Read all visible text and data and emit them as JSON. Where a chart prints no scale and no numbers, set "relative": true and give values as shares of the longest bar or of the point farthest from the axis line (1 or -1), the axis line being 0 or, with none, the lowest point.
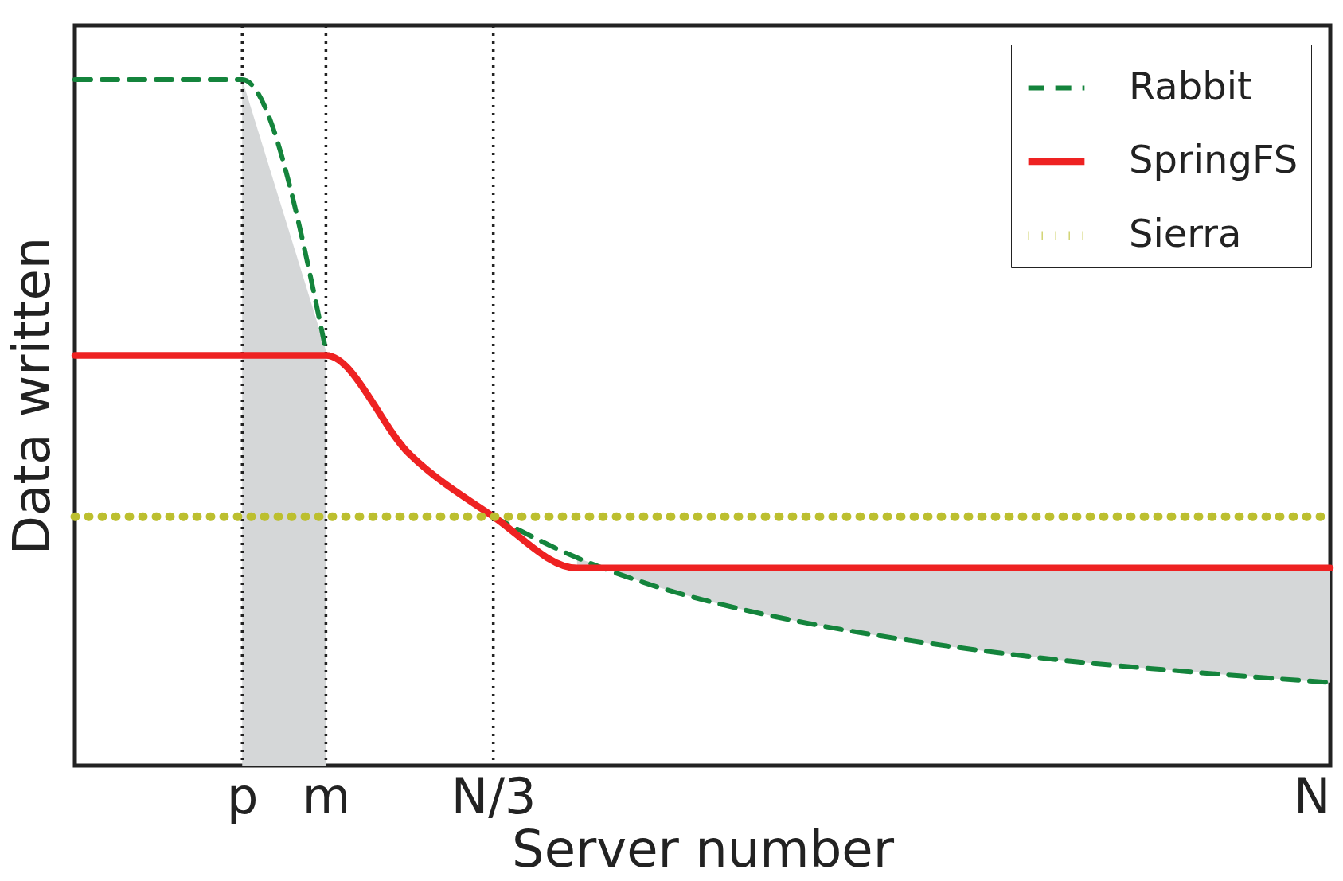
{
  "chart_data": {
    "type": "line",
    "relative": true,
    "xlabel": "Server number",
    "ylabel": "Data written",
    "categories": [
      null,
      null,
      "p",
      "m",
      null,
      "N/3",
      null,
      null,
      null,
      null,
      null,
      null,
      null,
      null,
      null,
      "N"
    ],
    "series": [
      {
        "name": "Rabbit",
        "color": "#14843c",
        "line_style": "dashed",
        "values": [
          1,
          1,
          1,
          0.605,
          null,
          0.363,
          0.303,
          0.259,
          0.227,
          0.202,
          0.182,
          0.165,
          0.151,
          0.14,
          0.13,
          0.121
        ],
        "lower": [
          null,
          null,
          0,
          0,
          null,
          null,
          0.303,
          0.259,
          0.227,
          0.202,
          0.182,
          0.165,
          0.151,
          0.14,
          0.13,
          0.121
        ],
        "upper": [
          null,
          null,
          1,
          0.605,
          null,
          null,
          0.288,
          0.288,
          0.288,
          0.288,
          0.288,
          0.288,
          0.288,
          0.288,
          0.288,
          0.288
        ]
      },
      {
        "name": "SpringFS",
        "color": "#ee2222",
        "line_style": "solid",
        "values": [
          0.598,
          0.598,
          0.598,
          0.598,
          0.454,
          0.363,
          0.288,
          0.288,
          0.288,
          0.288,
          0.288,
          0.288,
          0.288,
          0.288,
          0.288,
          0.288
        ]
      },
      {
        "name": "Sierra",
        "color": "#bcbf2f",
        "line_style": "dotted",
        "values": [
          0.363,
          0.363,
          0.363,
          0.363,
          0.363,
          0.363,
          0.363,
          0.363,
          0.363,
          0.363,
          0.363,
          0.363,
          0.363,
          0.363,
          0.363,
          0.363
        ]
      }
    ],
    "ref_lines": [
      {
        "axis": "x",
        "value": "p",
        "color": "#222222",
        "line_style": "dotted"
      },
      {
        "axis": "x",
        "value": "m",
        "color": "#222222",
        "line_style": "dotted"
      },
      {
        "axis": "x",
        "value": "N/3",
        "color": "#222222",
        "line_style": "dotted"
      }
    ],
    "legend": "top right",
    "grid": false
  }
}
